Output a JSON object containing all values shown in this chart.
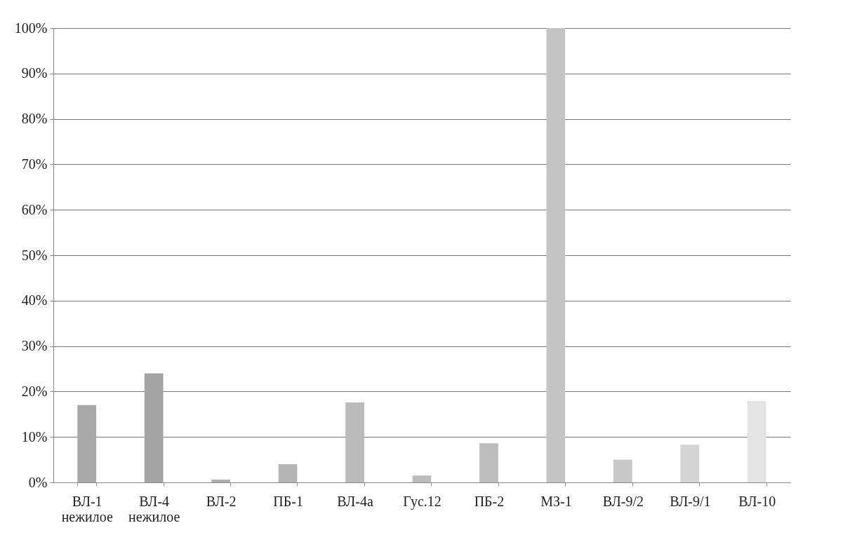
{
  "chart_data": {
    "type": "bar",
    "categories": [
      "ВЛ-1\nнежилое",
      "ВЛ-4\nнежилое",
      "ВЛ-2",
      "ПБ-1",
      "ВЛ-4а",
      "Гус.12",
      "ПБ-2",
      "МЗ-1",
      "ВЛ-9/2",
      "ВЛ-9/1",
      "ВЛ-10"
    ],
    "values": [
      17,
      24,
      0.6,
      4,
      17.6,
      1.5,
      8.6,
      100,
      5,
      8.3,
      17.9
    ],
    "colors": [
      "#a8a8a8",
      "#a4a4a4",
      "#b0b0b0",
      "#b4b4b4",
      "#bbbbbb",
      "#bcbcbc",
      "#bdbdbd",
      "#c4c4c4",
      "#c8c8c8",
      "#d4d4d4",
      "#e4e4e4"
    ],
    "ylim": [
      0,
      100
    ],
    "yticks": [
      {
        "value": 0,
        "label": "0%"
      },
      {
        "value": 10,
        "label": "10%"
      },
      {
        "value": 20,
        "label": "20%"
      },
      {
        "value": 30,
        "label": "30%"
      },
      {
        "value": 40,
        "label": "40%"
      },
      {
        "value": 50,
        "label": "50%"
      },
      {
        "value": 60,
        "label": "60%"
      },
      {
        "value": 70,
        "label": "70%"
      },
      {
        "value": 80,
        "label": "80%"
      },
      {
        "value": 90,
        "label": "90%"
      },
      {
        "value": 100,
        "label": "100%"
      }
    ],
    "grid": "y"
  }
}
